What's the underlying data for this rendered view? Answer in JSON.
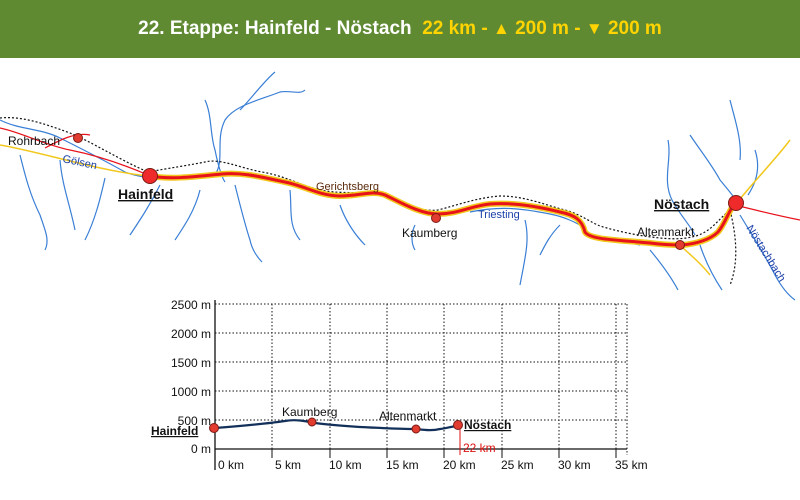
{
  "header": {
    "stage": "22. Etappe: Hainfeld - Nöstach",
    "distance": "22 km",
    "sep1": " - ",
    "up_symbol": "▲",
    "ascent": "200 m",
    "sep2": " - ",
    "down_symbol": "▼",
    "descent": "200 m"
  },
  "map": {
    "places": {
      "rohrbach": "Rohrbach",
      "hainfeld": "Hainfeld",
      "gerichtsberg": "Gerichtsberg",
      "kaumberg": "Kaumberg",
      "altenmarkt": "Altenmarkt",
      "noestach": "Nöstach"
    },
    "rivers": {
      "goelsen": "Gölsen",
      "triesting": "Triesting",
      "noestachbach": "Nöstachbach"
    }
  },
  "profile": {
    "y_ticks": [
      "2500 m",
      "2000 m",
      "1500 m",
      "1000 m",
      "500 m",
      "0 m"
    ],
    "x_ticks": [
      "0 km",
      "5 km",
      "10 km",
      "15 km",
      "20 km",
      "25 km",
      "30 km",
      "35 km"
    ],
    "start_label": "Hainfeld",
    "end_label": "Nöstach",
    "waypoints": [
      "Kaumberg",
      "Altenmarkt"
    ],
    "total_label": "22 km"
  },
  "colors": {
    "header_bg": "#5f8a32",
    "header_text": "#ffffff",
    "header_accent": "#ffd400",
    "route_red": "#e8121b",
    "route_yellow": "#f2c81d",
    "river_blue": "#3a7fd6",
    "profile_line": "#12305a",
    "marker_red": "#e23b2f"
  }
}
